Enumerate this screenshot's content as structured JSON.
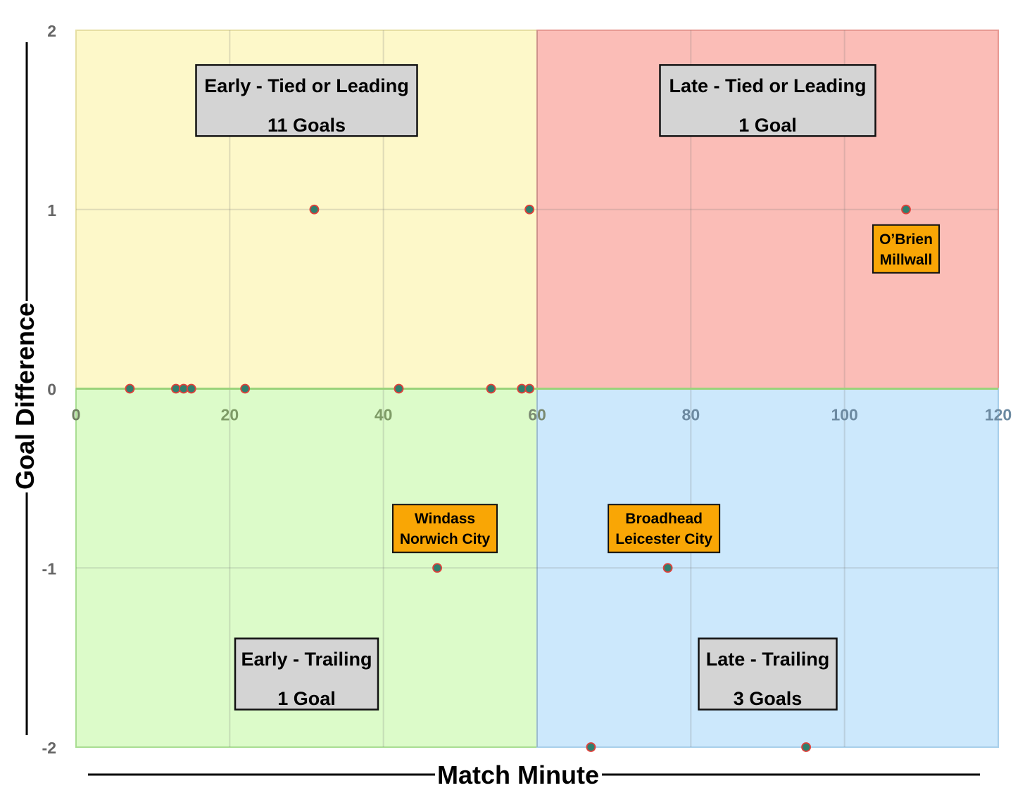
{
  "chart_data": {
    "type": "scatter",
    "title": "",
    "xlabel": "Match Minute",
    "ylabel": "Goal Difference",
    "xlim": [
      0,
      120
    ],
    "ylim": [
      -2,
      2
    ],
    "xticks": [
      0,
      20,
      40,
      60,
      80,
      100,
      120
    ],
    "yticks": [
      2,
      1,
      0,
      -1,
      -2
    ],
    "grid": true,
    "colors": {
      "early_lead_bg": "#fdf8c9",
      "late_lead_bg": "#fbbdb7",
      "early_trail_bg": "#dcfbc9",
      "late_trail_bg": "#cce8fc",
      "point_fill": "#2f7f6e",
      "point_stroke": "#e0403a",
      "annotation_bg": "#f9a605",
      "quadrant_box_bg": "#d4d4d4"
    },
    "quadrants": [
      {
        "name": "early-lead",
        "x_range": [
          0,
          60
        ],
        "y_range": [
          0,
          2
        ],
        "title": "Early - Tied or Leading",
        "count": "11 Goals",
        "label_at": [
          30,
          1.6
        ]
      },
      {
        "name": "late-lead",
        "x_range": [
          60,
          120
        ],
        "y_range": [
          0,
          2
        ],
        "title": "Late - Tied or Leading",
        "count": "1 Goal",
        "label_at": [
          90,
          1.6
        ]
      },
      {
        "name": "early-trail",
        "x_range": [
          0,
          60
        ],
        "y_range": [
          -2,
          0
        ],
        "title": "Early - Trailing",
        "count": "1 Goal",
        "label_at": [
          30,
          -1.6
        ]
      },
      {
        "name": "late-trail",
        "x_range": [
          60,
          120
        ],
        "y_range": [
          -2,
          0
        ],
        "title": "Late - Trailing",
        "count": "3 Goals",
        "label_at": [
          90,
          -1.6
        ]
      }
    ],
    "points": [
      {
        "x": 7,
        "y": 0
      },
      {
        "x": 13,
        "y": 0
      },
      {
        "x": 14,
        "y": 0
      },
      {
        "x": 15,
        "y": 0
      },
      {
        "x": 22,
        "y": 0
      },
      {
        "x": 42,
        "y": 0
      },
      {
        "x": 54,
        "y": 0
      },
      {
        "x": 58,
        "y": 0
      },
      {
        "x": 59,
        "y": 0
      },
      {
        "x": 31,
        "y": 1
      },
      {
        "x": 59,
        "y": 1
      },
      {
        "x": 108,
        "y": 1
      },
      {
        "x": 47,
        "y": -1
      },
      {
        "x": 77,
        "y": -1
      },
      {
        "x": 67,
        "y": -2
      },
      {
        "x": 95,
        "y": -2
      }
    ],
    "annotations": [
      {
        "name": "obrien",
        "lines": [
          "O’Brien",
          "Millwall"
        ],
        "at": [
          108,
          0.78
        ]
      },
      {
        "name": "windass",
        "lines": [
          "Windass",
          "Norwich City"
        ],
        "at": [
          48,
          -0.78
        ]
      },
      {
        "name": "broadhead",
        "lines": [
          "Broadhead",
          "Leicester City"
        ],
        "at": [
          76.5,
          -0.78
        ]
      }
    ]
  }
}
